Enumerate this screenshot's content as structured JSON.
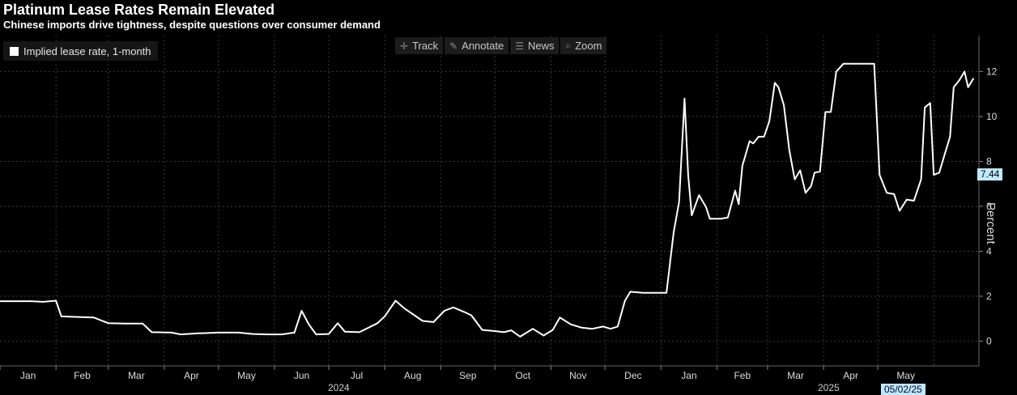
{
  "title": "Platinum Lease Rates Remain Elevated",
  "subtitle": "Chinese imports drive tightness, despite questions over consumer demand",
  "legend": {
    "label": "Implied lease rate, 1-month",
    "color": "#ffffff"
  },
  "toolbar": [
    {
      "label": "Track",
      "icon": "crosshair-icon"
    },
    {
      "label": "Annotate",
      "icon": "pencil-icon"
    },
    {
      "label": "News",
      "icon": "news-icon"
    },
    {
      "label": "Zoom",
      "icon": "magnifier-icon"
    }
  ],
  "axis": {
    "ylabel": "Percent"
  },
  "last_value_label": "7.44",
  "cursor_date_label": "05/02/25",
  "year_labels": [
    "2024",
    "2025"
  ],
  "chart_data": {
    "type": "line",
    "title": "Platinum Lease Rates Remain Elevated",
    "xlabel": "",
    "ylabel": "Percent",
    "ylim": [
      -1.1,
      13.6
    ],
    "yticks": [
      0,
      2,
      4,
      6,
      8,
      10,
      12
    ],
    "xticks": [
      "Jan",
      "Feb",
      "Mar",
      "Apr",
      "May",
      "Jun",
      "Jul",
      "Aug",
      "Sep",
      "Oct",
      "Nov",
      "Dec",
      "Jan",
      "Feb",
      "Mar",
      "Apr",
      "May"
    ],
    "grid": true,
    "legend_position": "top-left",
    "series": [
      {
        "name": "Implied lease rate, 1-month",
        "color": "#ffffff",
        "points": [
          [
            "2024-01-01",
            1.78
          ],
          [
            "2024-01-10",
            1.78
          ],
          [
            "2024-01-18",
            1.78
          ],
          [
            "2024-01-25",
            1.75
          ],
          [
            "2024-02-01",
            1.8
          ],
          [
            "2024-02-04",
            1.1
          ],
          [
            "2024-02-15",
            1.07
          ],
          [
            "2024-02-22",
            1.05
          ],
          [
            "2024-03-01",
            0.8
          ],
          [
            "2024-03-10",
            0.78
          ],
          [
            "2024-03-20",
            0.78
          ],
          [
            "2024-03-25",
            0.4
          ],
          [
            "2024-04-05",
            0.38
          ],
          [
            "2024-04-10",
            0.3
          ],
          [
            "2024-04-20",
            0.35
          ],
          [
            "2024-05-01",
            0.38
          ],
          [
            "2024-05-12",
            0.38
          ],
          [
            "2024-05-20",
            0.32
          ],
          [
            "2024-05-28",
            0.3
          ],
          [
            "2024-06-05",
            0.3
          ],
          [
            "2024-06-12",
            0.38
          ],
          [
            "2024-06-16",
            1.35
          ],
          [
            "2024-06-20",
            0.75
          ],
          [
            "2024-06-24",
            0.3
          ],
          [
            "2024-07-01",
            0.32
          ],
          [
            "2024-07-06",
            0.8
          ],
          [
            "2024-07-10",
            0.42
          ],
          [
            "2024-07-18",
            0.4
          ],
          [
            "2024-07-28",
            0.8
          ],
          [
            "2024-08-01",
            1.1
          ],
          [
            "2024-08-07",
            1.8
          ],
          [
            "2024-08-12",
            1.45
          ],
          [
            "2024-08-22",
            0.9
          ],
          [
            "2024-08-28",
            0.85
          ],
          [
            "2024-09-03",
            1.35
          ],
          [
            "2024-09-08",
            1.5
          ],
          [
            "2024-09-14",
            1.3
          ],
          [
            "2024-09-18",
            1.15
          ],
          [
            "2024-09-24",
            0.5
          ],
          [
            "2024-10-01",
            0.45
          ],
          [
            "2024-10-06",
            0.4
          ],
          [
            "2024-10-10",
            0.48
          ],
          [
            "2024-10-15",
            0.2
          ],
          [
            "2024-10-22",
            0.55
          ],
          [
            "2024-10-28",
            0.25
          ],
          [
            "2024-11-02",
            0.5
          ],
          [
            "2024-11-06",
            1.05
          ],
          [
            "2024-11-12",
            0.75
          ],
          [
            "2024-11-18",
            0.6
          ],
          [
            "2024-11-24",
            0.55
          ],
          [
            "2024-11-30",
            0.65
          ],
          [
            "2024-12-04",
            0.55
          ],
          [
            "2024-12-08",
            0.65
          ],
          [
            "2024-12-12",
            1.8
          ],
          [
            "2024-12-15",
            2.2
          ],
          [
            "2024-12-22",
            2.15
          ],
          [
            "2024-12-29",
            2.15
          ],
          [
            "2025-01-04",
            2.15
          ],
          [
            "2025-01-08",
            4.85
          ],
          [
            "2025-01-11",
            6.2
          ],
          [
            "2025-01-14",
            10.8
          ],
          [
            "2025-01-16",
            7.4
          ],
          [
            "2025-01-18",
            5.6
          ],
          [
            "2025-01-22",
            6.5
          ],
          [
            "2025-01-26",
            5.95
          ],
          [
            "2025-01-28",
            5.45
          ],
          [
            "2025-02-03",
            5.45
          ],
          [
            "2025-02-07",
            5.5
          ],
          [
            "2025-02-11",
            6.7
          ],
          [
            "2025-02-13",
            6.1
          ],
          [
            "2025-02-15",
            7.8
          ],
          [
            "2025-02-19",
            8.9
          ],
          [
            "2025-02-21",
            8.8
          ],
          [
            "2025-02-24",
            9.1
          ],
          [
            "2025-02-27",
            9.1
          ],
          [
            "2025-03-02",
            9.8
          ],
          [
            "2025-03-05",
            11.5
          ],
          [
            "2025-03-07",
            11.3
          ],
          [
            "2025-03-10",
            10.5
          ],
          [
            "2025-03-13",
            8.5
          ],
          [
            "2025-03-16",
            7.2
          ],
          [
            "2025-03-19",
            7.6
          ],
          [
            "2025-03-22",
            6.6
          ],
          [
            "2025-03-25",
            6.9
          ],
          [
            "2025-03-27",
            7.5
          ],
          [
            "2025-03-30",
            7.55
          ],
          [
            "2025-04-02",
            10.2
          ],
          [
            "2025-04-05",
            10.2
          ],
          [
            "2025-04-08",
            12.0
          ],
          [
            "2025-04-12",
            12.35
          ],
          [
            "2025-04-20",
            12.35
          ],
          [
            "2025-04-29",
            12.35
          ],
          [
            "2025-05-02",
            7.4
          ],
          [
            "2025-05-06",
            6.6
          ],
          [
            "2025-05-10",
            6.55
          ],
          [
            "2025-05-13",
            5.8
          ],
          [
            "2025-05-17",
            6.3
          ],
          [
            "2025-05-21",
            6.25
          ],
          [
            "2025-05-25",
            7.2
          ],
          [
            "2025-05-27",
            10.4
          ],
          [
            "2025-05-30",
            10.6
          ],
          [
            "2025-06-01",
            7.4
          ],
          [
            "2025-06-04",
            7.5
          ],
          [
            "2025-06-07",
            8.3
          ],
          [
            "2025-06-10",
            9.1
          ],
          [
            "2025-06-12",
            11.3
          ],
          [
            "2025-06-15",
            11.6
          ],
          [
            "2025-06-18",
            12.0
          ],
          [
            "2025-06-20",
            11.3
          ],
          [
            "2025-06-23",
            11.7
          ]
        ]
      }
    ]
  }
}
